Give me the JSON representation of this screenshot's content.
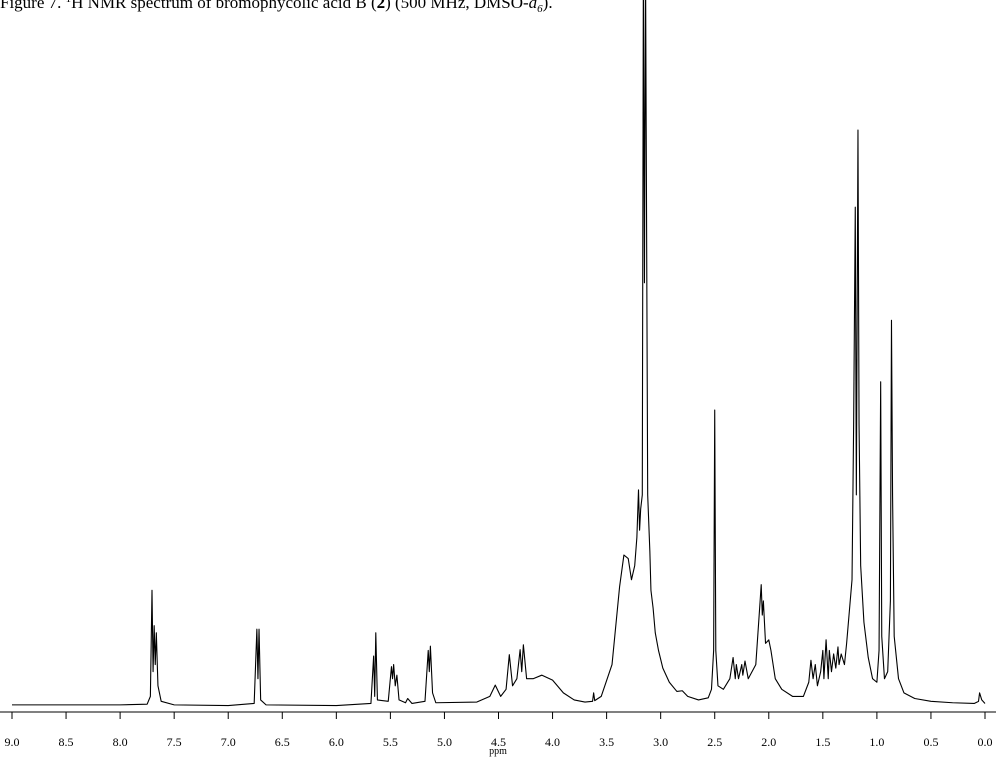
{
  "chart_data": {
    "type": "line",
    "title": [
      "Figure 7.  ",
      "1",
      "H NMR spectrum of bromophycolic acid B (",
      "2",
      ") (500 MHz, DMSO-",
      "d",
      "6",
      ")."
    ],
    "x_label": "ppm",
    "xlim": [
      9,
      0
    ],
    "ylim": [
      0,
      100
    ],
    "xticks": [
      {
        "value": 9,
        "label": "9.0"
      },
      8.5,
      {
        "value": 8,
        "label": "8.0"
      },
      7.5,
      {
        "value": 7,
        "label": "7.0"
      },
      6.5,
      {
        "value": 6,
        "label": "6.0"
      },
      5.5,
      {
        "value": 5,
        "label": "5.0"
      },
      4.5,
      {
        "value": 4,
        "label": "4.0"
      },
      3.5,
      {
        "value": 3,
        "label": "3.0"
      },
      2.5,
      {
        "value": 2,
        "label": "2.0"
      },
      1.5,
      {
        "value": 1,
        "label": "1.0"
      },
      0.5,
      {
        "value": 0,
        "label": "0.0"
      }
    ],
    "x": [
      9.0,
      8.0,
      7.75,
      7.72,
      7.705,
      7.695,
      7.685,
      7.675,
      7.665,
      7.65,
      7.62,
      7.5,
      7.0,
      6.76,
      6.735,
      6.725,
      6.715,
      6.7,
      6.65,
      6.0,
      5.68,
      5.655,
      5.645,
      5.635,
      5.62,
      5.52,
      5.49,
      5.48,
      5.47,
      5.455,
      5.44,
      5.42,
      5.36,
      5.34,
      5.3,
      5.18,
      5.15,
      5.14,
      5.13,
      5.11,
      5.08,
      4.7,
      4.58,
      4.53,
      4.48,
      4.43,
      4.4,
      4.37,
      4.33,
      4.3,
      4.285,
      4.27,
      4.24,
      4.18,
      4.1,
      4.0,
      3.9,
      3.8,
      3.7,
      3.63,
      3.62,
      3.61,
      3.55,
      3.45,
      3.38,
      3.34,
      3.3,
      3.27,
      3.24,
      3.22,
      3.205,
      3.195,
      3.185,
      3.17,
      3.16,
      3.15,
      3.14,
      3.12,
      3.1,
      3.09,
      3.07,
      3.05,
      3.02,
      2.98,
      2.92,
      2.85,
      2.8,
      2.75,
      2.65,
      2.56,
      2.53,
      2.51,
      2.5,
      2.49,
      2.47,
      2.42,
      2.36,
      2.33,
      2.31,
      2.3,
      2.28,
      2.25,
      2.24,
      2.22,
      2.19,
      2.12,
      2.08,
      2.07,
      2.06,
      2.05,
      2.03,
      2.0,
      1.98,
      1.94,
      1.88,
      1.78,
      1.68,
      1.63,
      1.61,
      1.59,
      1.57,
      1.55,
      1.52,
      1.5,
      1.49,
      1.47,
      1.45,
      1.44,
      1.42,
      1.4,
      1.38,
      1.36,
      1.35,
      1.33,
      1.3,
      1.28,
      1.25,
      1.23,
      1.215,
      1.2,
      1.19,
      1.175,
      1.165,
      1.15,
      1.12,
      1.08,
      1.04,
      1.0,
      0.98,
      0.965,
      0.955,
      0.93,
      0.9,
      0.875,
      0.865,
      0.855,
      0.84,
      0.8,
      0.75,
      0.65,
      0.5,
      0.3,
      0.1,
      0.06,
      0.05,
      0.03,
      0.0
    ],
    "series": [
      {
        "color": "#000000",
        "values": [
          0.3,
          0.3,
          0.4,
          1.5,
          16.5,
          5,
          11.5,
          6,
          10.5,
          3,
          0.8,
          0.3,
          0.2,
          0.5,
          11,
          4,
          11,
          1,
          0.3,
          0.2,
          0.5,
          7.2,
          1.5,
          10.5,
          1,
          0.8,
          5.7,
          4,
          6,
          3,
          4.5,
          1,
          0.6,
          1.2,
          0.5,
          0.8,
          8,
          5,
          8.6,
          2,
          0.6,
          0.7,
          1.5,
          3.1,
          1.5,
          2.5,
          7.4,
          3,
          4,
          8.1,
          5,
          8.8,
          4,
          4,
          4.5,
          3.8,
          2,
          1,
          0.7,
          0.8,
          2,
          0.9,
          1.5,
          6,
          17,
          21.5,
          21,
          18,
          20,
          24,
          30.7,
          25,
          28,
          30,
          105,
          60,
          105,
          30,
          22,
          16.5,
          14,
          10.5,
          8,
          5.5,
          3.5,
          2.2,
          2.3,
          1.5,
          1,
          1.3,
          2.5,
          8,
          42,
          8,
          3,
          2.5,
          4,
          7,
          4,
          6,
          4,
          6,
          4.5,
          6.5,
          4,
          6,
          15,
          17.3,
          13,
          15,
          9,
          9.5,
          8,
          4,
          2.5,
          1.5,
          1.5,
          3.5,
          6.6,
          4,
          6,
          3,
          5,
          8,
          4,
          9.5,
          4,
          8,
          5,
          7.5,
          5.5,
          8.5,
          6,
          7.5,
          6,
          9,
          14.4,
          18,
          40,
          70.7,
          30,
          81.6,
          40,
          20,
          12,
          7,
          4,
          3.5,
          8,
          46,
          10,
          4,
          5,
          15,
          54.7,
          30,
          10,
          4,
          2,
          1.2,
          0.8,
          0.6,
          0.5,
          0.8,
          2,
          1,
          0.5
        ]
      }
    ]
  }
}
